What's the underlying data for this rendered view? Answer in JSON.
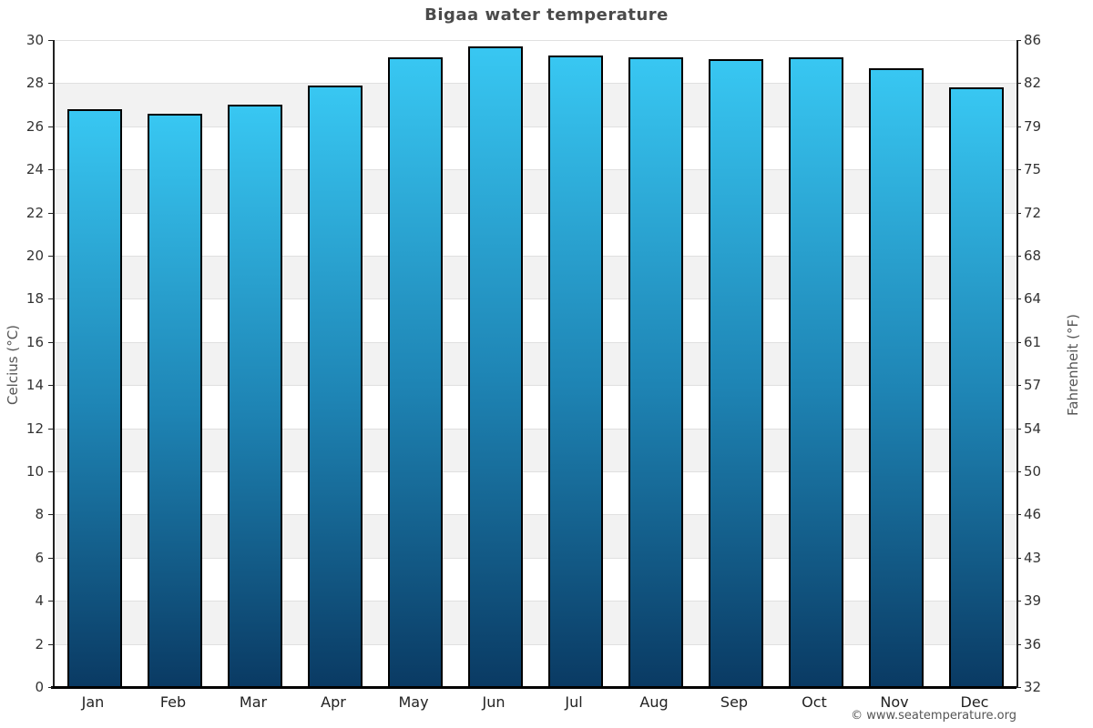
{
  "title": "Bigaa water temperature",
  "watermark": "© www.seatemperature.org",
  "chart_data": {
    "type": "bar",
    "title": "Bigaa water temperature",
    "categories": [
      "Jan",
      "Feb",
      "Mar",
      "Apr",
      "May",
      "Jun",
      "Jul",
      "Aug",
      "Sep",
      "Oct",
      "Nov",
      "Dec"
    ],
    "values": [
      26.8,
      26.6,
      27.0,
      27.9,
      29.2,
      29.7,
      29.3,
      29.2,
      29.1,
      29.2,
      28.7,
      27.8
    ],
    "unit": "°C",
    "xlabel": "",
    "ylabel_left": "Celcius (°C)",
    "ylabel_right": "Fahrenheit (°F)",
    "ylim": [
      0,
      30
    ],
    "yticks_celsius": [
      30,
      28,
      26,
      24,
      22,
      20,
      18,
      16,
      14,
      12,
      10,
      8,
      6,
      4,
      2,
      0
    ],
    "yticks_fahrenheit": [
      86,
      82,
      79,
      75,
      72,
      68,
      64,
      61,
      57,
      54,
      50,
      46,
      43,
      39,
      36,
      32
    ],
    "grid": "alternating-horizontal-bands",
    "legend": "none",
    "colors": {
      "bar_gradient_top": "#38c7f2",
      "bar_gradient_mid": "#1e84b4",
      "bar_gradient_bottom": "#0a3a63",
      "bar_border": "#000000",
      "band_gray": "#f2f2f2",
      "band_white": "#ffffff",
      "gridline": "#e0e0e0",
      "axis_line": "#222222",
      "title_text": "#4a4a4a",
      "tick_text": "#333333",
      "axis_label_text": "#555555",
      "watermark_text": "#555555"
    }
  }
}
